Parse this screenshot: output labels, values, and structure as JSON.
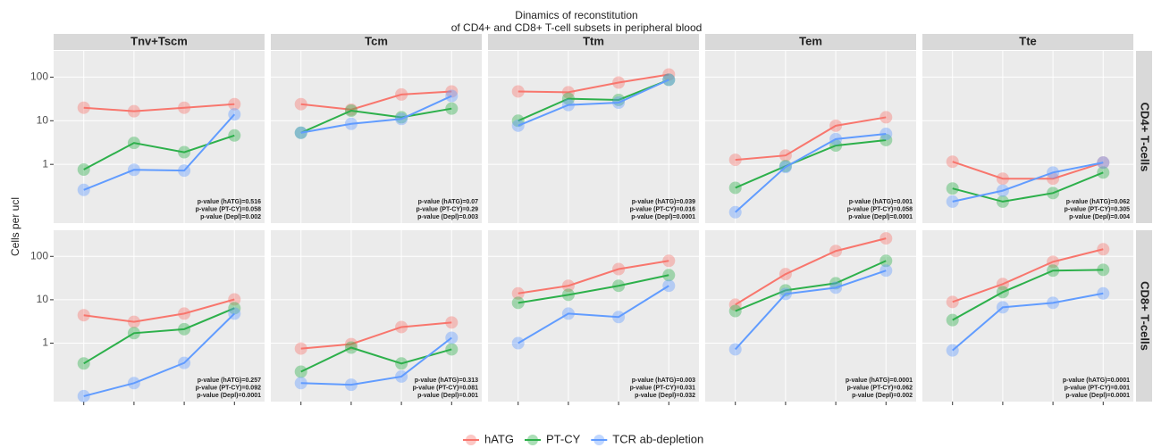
{
  "title_lines": [
    "Dinamics of reconstitution",
    "of CD4+ and CD8+ T-cell subsets in peripheral blood"
  ],
  "y_label": "Cells per ucl",
  "column_labels": [
    "Tnv+Tscm",
    "Tcm",
    "Ttm",
    "Tem",
    "Tte"
  ],
  "row_labels": [
    "CD4+ T-cells",
    "CD8+ T-cells"
  ],
  "chart_data": [
    {
      "type": "line",
      "log_y": true,
      "ylim": [
        0.045,
        400
      ],
      "yticks": [
        1,
        10,
        100
      ],
      "grid": true,
      "categories": [
        null,
        null,
        null,
        null
      ],
      "series": [
        {
          "name": "hATG",
          "color": "#F8766D",
          "values": [
            19.9,
            16.5,
            19.9,
            24
          ]
        },
        {
          "name": "PT-CY",
          "color": "#2DB04B",
          "values": [
            0.76,
            3.1,
            1.9,
            4.6
          ]
        },
        {
          "name": "TCR ab-depletion",
          "color": "#619CFF",
          "values": [
            0.26,
            0.75,
            0.72,
            14
          ]
        }
      ],
      "annotations": [
        "p-value (hATG)=0.516",
        "p-value (PT-CY)=0.058",
        "p-value (Depl)=0.002"
      ]
    },
    {
      "type": "line",
      "log_y": true,
      "ylim": [
        0.045,
        400
      ],
      "yticks": [
        1,
        10,
        100
      ],
      "grid": true,
      "categories": [
        null,
        null,
        null,
        null
      ],
      "series": [
        {
          "name": "hATG",
          "color": "#F8766D",
          "values": [
            24,
            18,
            40,
            47
          ]
        },
        {
          "name": "PT-CY",
          "color": "#2DB04B",
          "values": [
            5.3,
            17,
            12,
            19
          ]
        },
        {
          "name": "TCR ab-depletion",
          "color": "#619CFF",
          "values": [
            5.3,
            8.5,
            11,
            37
          ]
        }
      ],
      "annotations": [
        "p-value (hATG)=0.07",
        "p-value (PT-CY)=0.29",
        "p-value (Depl)=0.003"
      ]
    },
    {
      "type": "line",
      "log_y": true,
      "ylim": [
        0.045,
        400
      ],
      "yticks": [
        1,
        10,
        100
      ],
      "grid": true,
      "categories": [
        null,
        null,
        null,
        null
      ],
      "series": [
        {
          "name": "hATG",
          "color": "#F8766D",
          "values": [
            47,
            45,
            75,
            115
          ]
        },
        {
          "name": "PT-CY",
          "color": "#2DB04B",
          "values": [
            10,
            32,
            30,
            87
          ]
        },
        {
          "name": "TCR ab-depletion",
          "color": "#619CFF",
          "values": [
            7.7,
            23,
            26,
            87
          ]
        }
      ],
      "annotations": [
        "p-value (hATG)=0.039",
        "p-value (PT-CY)=0.016",
        "p-value (Depl)=0.0001"
      ]
    },
    {
      "type": "line",
      "log_y": true,
      "ylim": [
        0.045,
        400
      ],
      "yticks": [
        1,
        10,
        100
      ],
      "grid": true,
      "categories": [
        null,
        null,
        null,
        null
      ],
      "series": [
        {
          "name": "hATG",
          "color": "#F8766D",
          "values": [
            1.27,
            1.6,
            7.7,
            12
          ]
        },
        {
          "name": "PT-CY",
          "color": "#2DB04B",
          "values": [
            0.29,
            0.91,
            2.7,
            3.6
          ]
        },
        {
          "name": "TCR ab-depletion",
          "color": "#619CFF",
          "values": [
            0.08,
            0.87,
            3.8,
            5
          ]
        }
      ],
      "annotations": [
        "p-value (hATG)=0.001",
        "p-value (PT-CY)=0.058",
        "p-value (Depl)=0.0001"
      ]
    },
    {
      "type": "line",
      "log_y": true,
      "ylim": [
        0.045,
        400
      ],
      "yticks": [
        1,
        10,
        100
      ],
      "grid": true,
      "categories": [
        null,
        null,
        null,
        null
      ],
      "series": [
        {
          "name": "hATG",
          "color": "#F8766D",
          "values": [
            1.15,
            0.47,
            0.47,
            1.1
          ]
        },
        {
          "name": "PT-CY",
          "color": "#2DB04B",
          "values": [
            0.28,
            0.14,
            0.22,
            0.65
          ]
        },
        {
          "name": "TCR ab-depletion",
          "color": "#619CFF",
          "values": [
            0.14,
            0.25,
            0.65,
            1.1
          ]
        }
      ],
      "annotations": [
        "p-value (hATG)=0.062",
        "p-value (PT-CY)=0.305",
        "p-value (Depl)=0.004"
      ]
    },
    {
      "type": "line",
      "log_y": true,
      "ylim": [
        0.045,
        400
      ],
      "yticks": [
        1,
        10,
        100
      ],
      "grid": true,
      "categories": [
        null,
        null,
        null,
        null
      ],
      "series": [
        {
          "name": "hATG",
          "color": "#F8766D",
          "values": [
            4.4,
            3.1,
            4.8,
            10.2
          ]
        },
        {
          "name": "PT-CY",
          "color": "#2DB04B",
          "values": [
            0.34,
            1.7,
            2.1,
            6.4
          ]
        },
        {
          "name": "TCR ab-depletion",
          "color": "#619CFF",
          "values": [
            0.06,
            0.12,
            0.35,
            4.8
          ]
        }
      ],
      "annotations": [
        "p-value (hATG)=0.257",
        "p-value (PT-CY)=0.092",
        "p-value (Depl)=0.0001"
      ]
    },
    {
      "type": "line",
      "log_y": true,
      "ylim": [
        0.045,
        400
      ],
      "yticks": [
        1,
        10,
        100
      ],
      "grid": true,
      "categories": [
        null,
        null,
        null,
        null
      ],
      "series": [
        {
          "name": "hATG",
          "color": "#F8766D",
          "values": [
            0.75,
            0.95,
            2.35,
            3
          ]
        },
        {
          "name": "PT-CY",
          "color": "#2DB04B",
          "values": [
            0.22,
            0.79,
            0.34,
            0.72
          ]
        },
        {
          "name": "TCR ab-depletion",
          "color": "#619CFF",
          "values": [
            0.12,
            0.11,
            0.17,
            1.33
          ]
        }
      ],
      "annotations": [
        "p-value (hATG)=0.313",
        "p-value (PT-CY)=0.081",
        "p-value (Depl)=0.001"
      ]
    },
    {
      "type": "line",
      "log_y": true,
      "ylim": [
        0.045,
        400
      ],
      "yticks": [
        1,
        10,
        100
      ],
      "grid": true,
      "categories": [
        null,
        null,
        null,
        null
      ],
      "series": [
        {
          "name": "hATG",
          "color": "#F8766D",
          "values": [
            14,
            21,
            51,
            79
          ]
        },
        {
          "name": "PT-CY",
          "color": "#2DB04B",
          "values": [
            8.5,
            13,
            21,
            37
          ]
        },
        {
          "name": "TCR ab-depletion",
          "color": "#619CFF",
          "values": [
            1,
            4.8,
            4,
            21
          ]
        }
      ],
      "annotations": [
        "p-value (hATG)=0.003",
        "p-value (PT-CY)=0.031",
        "p-value (Depl)=0.032"
      ]
    },
    {
      "type": "line",
      "log_y": true,
      "ylim": [
        0.045,
        400
      ],
      "yticks": [
        1,
        10,
        100
      ],
      "grid": true,
      "categories": [
        null,
        null,
        null,
        null
      ],
      "series": [
        {
          "name": "hATG",
          "color": "#F8766D",
          "values": [
            7.7,
            39,
            133,
            260
          ]
        },
        {
          "name": "PT-CY",
          "color": "#2DB04B",
          "values": [
            5.5,
            16.5,
            24,
            79
          ]
        },
        {
          "name": "TCR ab-depletion",
          "color": "#619CFF",
          "values": [
            0.72,
            13.6,
            19,
            47
          ]
        }
      ],
      "annotations": [
        "p-value (hATG)=0.0001",
        "p-value (PT-CY)=0.062",
        "p-value (Depl)=0.002"
      ]
    },
    {
      "type": "line",
      "log_y": true,
      "ylim": [
        0.045,
        400
      ],
      "yticks": [
        1,
        10,
        100
      ],
      "grid": true,
      "categories": [
        null,
        null,
        null,
        null
      ],
      "series": [
        {
          "name": "hATG",
          "color": "#F8766D",
          "values": [
            8.9,
            23,
            75,
            146
          ]
        },
        {
          "name": "PT-CY",
          "color": "#2DB04B",
          "values": [
            3.4,
            15,
            47,
            49
          ]
        },
        {
          "name": "TCR ab-depletion",
          "color": "#619CFF",
          "values": [
            0.68,
            6.7,
            8.5,
            14
          ]
        }
      ],
      "annotations": [
        "p-value (hATG)=0.0001",
        "p-value (PT-CY)=0.001",
        "p-value (Depl)=0.0001"
      ]
    }
  ]
}
